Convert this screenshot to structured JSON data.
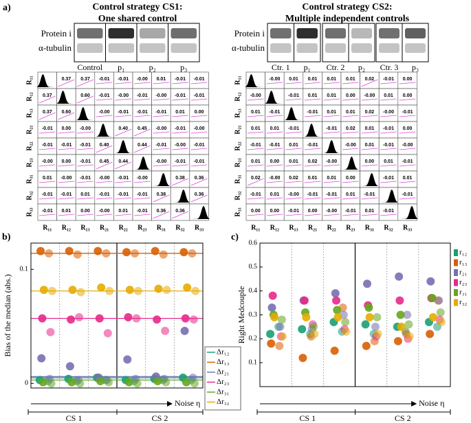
{
  "panel_a": {
    "label": "a)",
    "cs1": {
      "title": [
        "Control strategy CS1:",
        "One shared control"
      ],
      "rows": [
        "Protein i",
        "α-tubulin"
      ],
      "lanes": [
        "Control",
        "p₁",
        "p₂",
        "p₃"
      ],
      "labels": [
        "R₁₁",
        "R₁₂",
        "R₁₃",
        "R₂₁",
        "R₂₂",
        "R₂₃",
        "R₃₁",
        "R₃₂",
        "R₃₃"
      ],
      "matrix": [
        [
          null,
          "0.37",
          "0.37",
          "-0.01",
          "-0.01",
          "-0.00",
          "0.01",
          "-0.01",
          "-0.01"
        ],
        [
          "0.37",
          null,
          "0.60",
          "-0.01",
          "-0.00",
          "-0.01",
          "-0.00",
          "-0.01",
          "-0.01"
        ],
        [
          "0.37",
          "0.60",
          null,
          "-0.00",
          "-0.01",
          "-0.01",
          "-0.01",
          "0.01",
          "0.00"
        ],
        [
          "-0.01",
          "0.00",
          "-0.00",
          null,
          "0.40",
          "0.45",
          "-0.00",
          "-0.01",
          "-0.00"
        ],
        [
          "-0.01",
          "-0.01",
          "-0.01",
          "0.40",
          null,
          "0.44",
          "-0.01",
          "-0.00",
          "-0.01"
        ],
        [
          "-0.00",
          "0.00",
          "-0.01",
          "0.45",
          "0.44",
          null,
          "-0.00",
          "-0.01",
          "-0.01"
        ],
        [
          "0.01",
          "-0.00",
          "-0.01",
          "-0.00",
          "-0.01",
          "-0.00",
          null,
          "0.38",
          "0.36"
        ],
        [
          "-0.01",
          "-0.01",
          "0.01",
          "-0.01",
          "-0.01",
          "-0.01",
          "0.38",
          null,
          "0.36"
        ],
        [
          "-0.01",
          "0.01",
          "0.00",
          "-0.00",
          "0.01",
          "-0.01",
          "0.36",
          "0.36",
          null
        ]
      ],
      "highlight_color": "#e8000b",
      "highlighted": [
        [
          0,
          1
        ],
        [
          0,
          2
        ],
        [
          1,
          0
        ],
        [
          1,
          2
        ],
        [
          2,
          0
        ],
        [
          2,
          1
        ],
        [
          3,
          4
        ],
        [
          3,
          5
        ],
        [
          4,
          3
        ],
        [
          4,
          5
        ],
        [
          5,
          3
        ],
        [
          5,
          4
        ],
        [
          6,
          7
        ],
        [
          6,
          8
        ],
        [
          7,
          6
        ],
        [
          7,
          8
        ],
        [
          8,
          6
        ],
        [
          8,
          7
        ]
      ]
    },
    "cs2": {
      "title": [
        "Control strategy CS2:",
        "Multiple independent controls"
      ],
      "rows": [
        "Protein i",
        "α-tubulin"
      ],
      "lanes": [
        "Ctr. 1",
        "p₁",
        "Ctr. 2",
        "p₂",
        "Ctr. 3",
        "p₃"
      ],
      "labels": [
        "R₁₁",
        "R₁₂",
        "R₁₃",
        "R₂₁",
        "R₂₂",
        "R₂₃",
        "R₃₁",
        "R₃₂",
        "R₃₃"
      ],
      "matrix": [
        [
          null,
          "-0.00",
          "0.01",
          "0.01",
          "0.01",
          "0.01",
          "0.02",
          "-0.01",
          "0.00"
        ],
        [
          "-0.00",
          null,
          "-0.01",
          "0.01",
          "0.01",
          "0.00",
          "-0.00",
          "0.01",
          "0.00"
        ],
        [
          "0.01",
          "-0.01",
          null,
          "-0.01",
          "0.01",
          "0.01",
          "0.02",
          "-0.00",
          "-0.01"
        ],
        [
          "0.01",
          "0.01",
          "-0.01",
          null,
          "-0.01",
          "0.02",
          "0.01",
          "-0.01",
          "0.00"
        ],
        [
          "-0.01",
          "-0.01",
          "0.01",
          "-0.01",
          null,
          "-0.00",
          "0.01",
          "-0.01",
          "-0.00"
        ],
        [
          "0.01",
          "0.00",
          "0.01",
          "0.02",
          "-0.00",
          null,
          "0.00",
          "0.01",
          "-0.01"
        ],
        [
          "0.02",
          "-0.00",
          "0.02",
          "0.01",
          "0.01",
          "0.00",
          null,
          "-0.01",
          "0.01"
        ],
        [
          "-0.01",
          "0.01",
          "-0.00",
          "-0.01",
          "-0.01",
          "0.01",
          "-0.01",
          null,
          "-0.01"
        ],
        [
          "0.00",
          "0.00",
          "-0.01",
          "0.00",
          "-0.00",
          "-0.01",
          "0.01",
          "-0.01",
          null
        ]
      ],
      "highlight_color": "#e8000b",
      "highlighted": [
        [
          0,
          6
        ],
        [
          6,
          0
        ]
      ]
    }
  },
  "chart_data": [
    {
      "type": "scatter",
      "label": "b)",
      "y_label": "Bias of the median (abs.)",
      "x_label": "Noise η",
      "groups": [
        "CS 1",
        "CS 2"
      ],
      "categories": [
        null,
        null,
        null,
        null,
        null,
        null,
        null,
        null,
        null,
        null,
        null,
        null
      ],
      "ylim": [
        -0.004,
        0.123
      ],
      "yticks": [
        0,
        0.1
      ],
      "series": [
        {
          "color": "#1b9e77",
          "values": [
            0.003,
            0.002,
            0.004,
            0.002,
            0.005,
            0.003,
            0.003,
            0.002,
            0.004,
            0.003,
            0.005,
            0.003
          ]
        },
        {
          "color": "#d95f02",
          "values": [
            0.116,
            0.114,
            0.116,
            0.113,
            0.116,
            0.114,
            0.115,
            0.114,
            0.116,
            0.113,
            0.115,
            0.114
          ]
        },
        {
          "color": "#7570b3",
          "values": [
            0.022,
            0.004,
            0.015,
            0.003,
            0.005,
            0.003,
            0.021,
            0.004,
            0.006,
            0.004,
            0.046,
            0.005
          ]
        },
        {
          "color": "#e7298a",
          "values": [
            0.057,
            0.045,
            0.056,
            0.058,
            0.057,
            0.044,
            0.058,
            0.057,
            0.056,
            0.046,
            0.057,
            0.056
          ]
        },
        {
          "color": "#66a61e",
          "values": [
            0.001,
            0.0,
            0.001,
            0.0,
            0.002,
            0.001,
            0.001,
            0.0,
            0.002,
            0.001,
            0.001,
            0.0
          ]
        },
        {
          "color": "#e6ab02",
          "values": [
            0.082,
            0.081,
            0.082,
            0.08,
            0.084,
            0.081,
            0.082,
            0.081,
            0.083,
            0.082,
            0.084,
            0.081
          ]
        }
      ],
      "reference_lines": [
        {
          "name": "Δr₁₂",
          "color": "#1b9e77",
          "value": 0.005
        },
        {
          "name": "Δr₁₃",
          "color": "#d95f02",
          "value": 0.114
        },
        {
          "name": "Δr₂₁",
          "color": "#7570b3",
          "value": 0.006
        },
        {
          "name": "Δr₂₃",
          "color": "#e7298a",
          "value": 0.057
        },
        {
          "name": "Δr₃₁",
          "color": "#66a61e",
          "value": 0.003
        },
        {
          "name": "Δr₃₂",
          "color": "#e6ab02",
          "value": 0.081
        }
      ]
    },
    {
      "type": "scatter",
      "label": "c)",
      "y_label": "Right Medcouple",
      "x_label": "Noise η",
      "groups": [
        "CS 1",
        "CS 2"
      ],
      "categories": [
        null,
        null,
        null,
        null,
        null,
        null,
        null,
        null,
        null,
        null,
        null,
        null
      ],
      "ylim": [
        0,
        0.6
      ],
      "yticks": [
        0.1,
        0.2,
        0.3,
        0.4,
        0.5,
        0.6
      ],
      "series": [
        {
          "name": "r₁₂",
          "color": "#1b9e77",
          "values": [
            0.22,
            0.25,
            0.24,
            0.22,
            0.27,
            0.23,
            0.26,
            0.22,
            0.25,
            0.23,
            0.27,
            0.25
          ]
        },
        {
          "name": "r₁₃",
          "color": "#d95f02",
          "values": [
            0.18,
            0.17,
            0.12,
            0.21,
            0.15,
            0.33,
            0.17,
            0.19,
            0.19,
            0.22,
            0.22,
            0.36
          ]
        },
        {
          "name": "r₂₁",
          "color": "#7570b3",
          "values": [
            0.33,
            0.25,
            0.36,
            0.24,
            0.39,
            0.3,
            0.43,
            0.25,
            0.46,
            0.3,
            0.44,
            0.36
          ]
        },
        {
          "name": "r₂₃",
          "color": "#e7298a",
          "values": [
            0.38,
            0.21,
            0.36,
            0.26,
            0.36,
            0.24,
            0.34,
            0.21,
            0.36,
            0.2,
            0.37,
            0.28
          ]
        },
        {
          "name": "r₃₁",
          "color": "#66a61e",
          "values": [
            0.3,
            0.28,
            0.31,
            0.25,
            0.32,
            0.27,
            0.33,
            0.29,
            0.3,
            0.26,
            0.37,
            0.31
          ]
        },
        {
          "name": "r₃₂",
          "color": "#e6ab02",
          "values": [
            0.29,
            0.21,
            0.29,
            0.22,
            0.29,
            0.23,
            0.29,
            0.22,
            0.25,
            0.21,
            0.29,
            0.27
          ]
        }
      ]
    }
  ]
}
